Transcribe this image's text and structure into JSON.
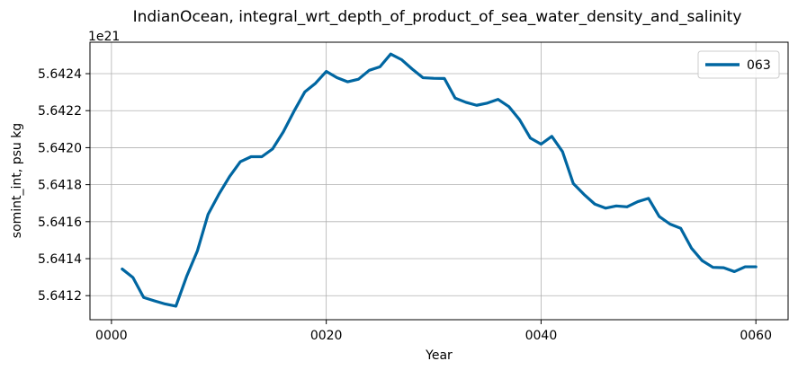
{
  "chart_data": {
    "type": "line",
    "title": "IndianOcean, integral_wrt_depth_of_product_of_sea_water_density_and_salinity",
    "xlabel": "Year",
    "ylabel": "somint_int, psu kg",
    "offset_label": "1e21",
    "xlim": [
      -2,
      63
    ],
    "ylim": [
      5.64107,
      5.64257
    ],
    "x_ticks": [
      {
        "value": 0,
        "label": "0000"
      },
      {
        "value": 20,
        "label": "0020"
      },
      {
        "value": 40,
        "label": "0040"
      },
      {
        "value": 60,
        "label": "0060"
      }
    ],
    "y_ticks": [
      {
        "value": 5.6412,
        "label": "5.6412"
      },
      {
        "value": 5.6414,
        "label": "5.6414"
      },
      {
        "value": 5.6416,
        "label": "5.6416"
      },
      {
        "value": 5.6418,
        "label": "5.6418"
      },
      {
        "value": 5.642,
        "label": "5.6420"
      },
      {
        "value": 5.6422,
        "label": "5.6422"
      },
      {
        "value": 5.6424,
        "label": "5.6424"
      }
    ],
    "grid": true,
    "legend_position": "top-right",
    "series": [
      {
        "name": "063",
        "color": "#0066a1",
        "x": [
          1,
          2,
          3,
          4,
          5,
          6,
          7,
          8,
          9,
          10,
          11,
          12,
          13,
          14,
          15,
          16,
          17,
          18,
          19,
          20,
          21,
          22,
          23,
          24,
          25,
          26,
          27,
          28,
          29,
          30,
          31,
          32,
          33,
          34,
          35,
          36,
          37,
          38,
          39,
          40,
          41,
          42,
          43,
          44,
          45,
          46,
          47,
          48,
          49,
          50,
          51,
          52,
          53,
          54,
          55,
          56,
          57,
          58,
          59,
          60
        ],
        "y": [
          5.641344,
          5.641298,
          5.64119,
          5.641172,
          5.641155,
          5.641143,
          5.641304,
          5.641442,
          5.64164,
          5.641748,
          5.641844,
          5.641924,
          5.641951,
          5.641951,
          5.641993,
          5.642085,
          5.642197,
          5.642301,
          5.642348,
          5.642412,
          5.642378,
          5.642356,
          5.64237,
          5.642418,
          5.642437,
          5.642506,
          5.642476,
          5.642425,
          5.642378,
          5.642375,
          5.642374,
          5.642268,
          5.642245,
          5.642229,
          5.642241,
          5.642261,
          5.642222,
          5.642151,
          5.642052,
          5.642019,
          5.642061,
          5.641978,
          5.641806,
          5.641747,
          5.641695,
          5.641673,
          5.641685,
          5.64168,
          5.641708,
          5.641726,
          5.641628,
          5.641587,
          5.641564,
          5.641457,
          5.641389,
          5.641353,
          5.641351,
          5.64133,
          5.641356,
          5.641356
        ]
      }
    ]
  }
}
